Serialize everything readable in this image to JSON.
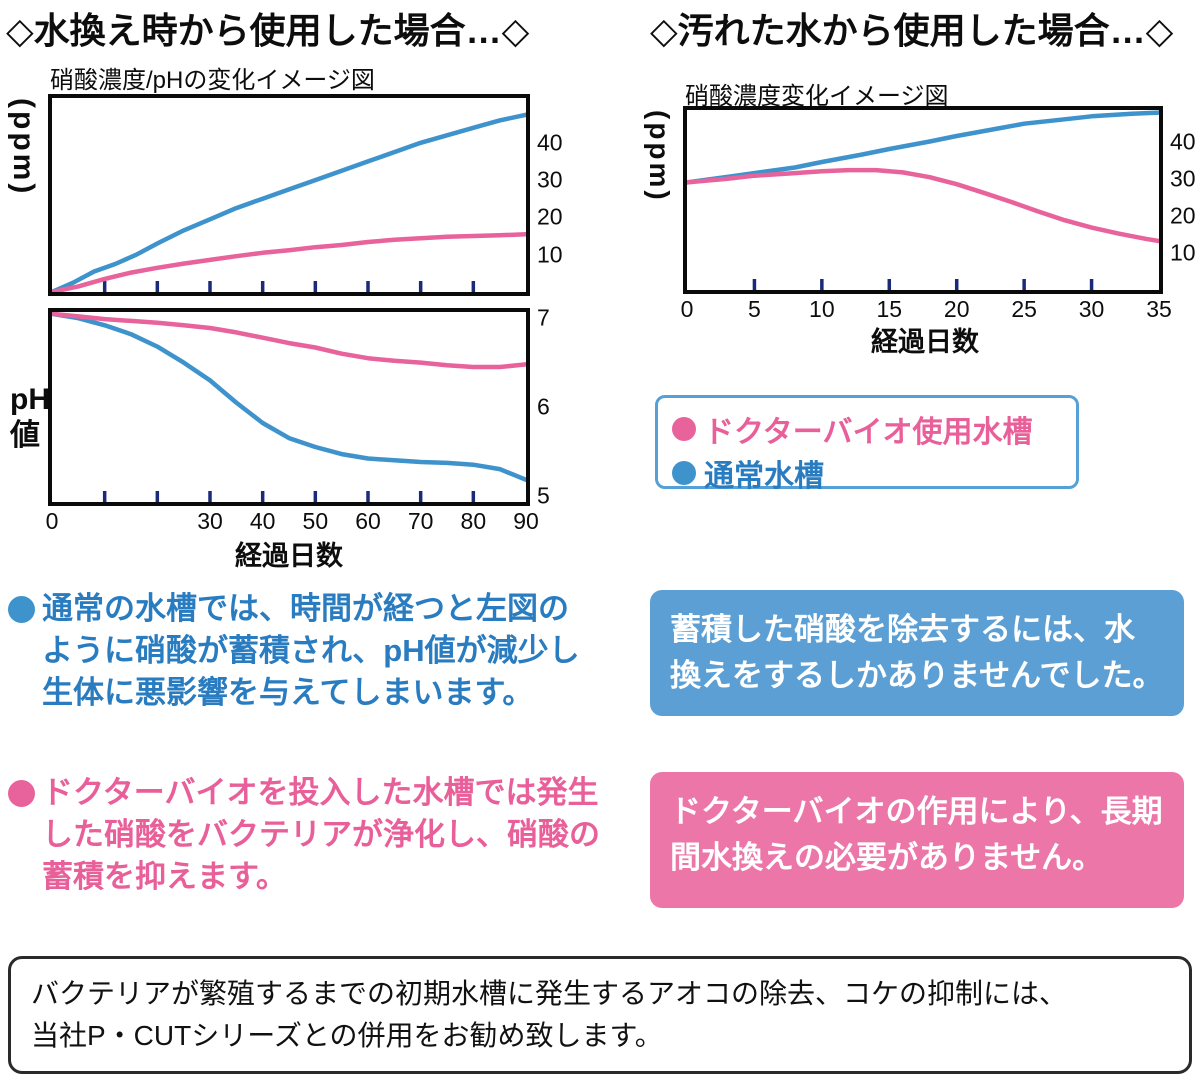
{
  "header": {
    "left_title": "◇水換え時から使用した場合…◇",
    "right_title": "◇汚れた水から使用した場合…◇"
  },
  "colors": {
    "pink": "#e8639b",
    "blue": "#3e93cc",
    "tick_navy": "#1b2a78",
    "chart_border": "#0a0a0a",
    "box_blue_bg": "#5b9fd4",
    "box_pink_bg": "#ec76a8",
    "text_blue": "#2a7cc0",
    "text_pink": "#e85f99",
    "legend_border": "#55a0d6"
  },
  "chart_data": [
    {
      "type": "line",
      "title": "硝酸濃度/pHの変化イメージ図",
      "ylabel": "硝酸濃度(ppm)",
      "xlabel": "",
      "xlim": [
        0,
        90
      ],
      "ylim": [
        0,
        52
      ],
      "xticks": [
        {
          "v": 10
        },
        {
          "v": 20
        },
        {
          "v": 30
        },
        {
          "v": 40
        },
        {
          "v": 50
        },
        {
          "v": 60
        },
        {
          "v": 70
        },
        {
          "v": 80
        }
      ],
      "yticks": [
        {
          "v": 40,
          "label": "40"
        },
        {
          "v": 30,
          "label": "30"
        },
        {
          "v": 20,
          "label": "20"
        },
        {
          "v": 10,
          "label": "10"
        }
      ],
      "series": [
        {
          "name": "通常水槽",
          "color": "blue",
          "points": [
            [
              0,
              0
            ],
            [
              4,
              2.5
            ],
            [
              8,
              5.5
            ],
            [
              12,
              7.5
            ],
            [
              16,
              10
            ],
            [
              20,
              13
            ],
            [
              25,
              16.5
            ],
            [
              30,
              19.5
            ],
            [
              35,
              22.5
            ],
            [
              40,
              25
            ],
            [
              45,
              27.5
            ],
            [
              50,
              30
            ],
            [
              55,
              32.5
            ],
            [
              60,
              35
            ],
            [
              65,
              37.5
            ],
            [
              70,
              40
            ],
            [
              75,
              42
            ],
            [
              80,
              44
            ],
            [
              85,
              46
            ],
            [
              90,
              47.5
            ]
          ]
        },
        {
          "name": "ドクターバイオ使用水槽",
          "color": "pink",
          "points": [
            [
              0,
              0
            ],
            [
              5,
              1.5
            ],
            [
              10,
              3.5
            ],
            [
              15,
              5.2
            ],
            [
              20,
              6.5
            ],
            [
              25,
              7.6
            ],
            [
              30,
              8.6
            ],
            [
              35,
              9.6
            ],
            [
              40,
              10.5
            ],
            [
              45,
              11.2
            ],
            [
              50,
              12
            ],
            [
              55,
              12.6
            ],
            [
              60,
              13.4
            ],
            [
              65,
              14
            ],
            [
              70,
              14.4
            ],
            [
              75,
              14.8
            ],
            [
              80,
              15
            ],
            [
              85,
              15.2
            ],
            [
              90,
              15.5
            ]
          ]
        }
      ]
    },
    {
      "type": "line",
      "title": "",
      "ylabel": "pH値",
      "ylabel_lines": [
        "pH",
        "値"
      ],
      "xlabel": "経過日数",
      "xlim": [
        0,
        90
      ],
      "ylim": [
        4.93,
        7.07
      ],
      "xticks": [
        {
          "v": 0,
          "label": "0",
          "tick": false
        },
        {
          "v": 10
        },
        {
          "v": 20
        },
        {
          "v": 30,
          "label": "30"
        },
        {
          "v": 40,
          "label": "40"
        },
        {
          "v": 50,
          "label": "50"
        },
        {
          "v": 60,
          "label": "60"
        },
        {
          "v": 70,
          "label": "70"
        },
        {
          "v": 80,
          "label": "80"
        },
        {
          "v": 90,
          "label": "90",
          "tick": false
        }
      ],
      "yticks": [
        {
          "v": 7,
          "label": "7"
        },
        {
          "v": 6,
          "label": "6"
        },
        {
          "v": 5,
          "label": "5"
        }
      ],
      "series": [
        {
          "name": "通常水槽",
          "color": "blue",
          "points": [
            [
              0,
              7.05
            ],
            [
              5,
              7.0
            ],
            [
              10,
              6.92
            ],
            [
              15,
              6.82
            ],
            [
              20,
              6.68
            ],
            [
              25,
              6.5
            ],
            [
              30,
              6.3
            ],
            [
              35,
              6.05
            ],
            [
              40,
              5.82
            ],
            [
              45,
              5.65
            ],
            [
              50,
              5.55
            ],
            [
              55,
              5.47
            ],
            [
              60,
              5.42
            ],
            [
              65,
              5.4
            ],
            [
              70,
              5.38
            ],
            [
              75,
              5.37
            ],
            [
              80,
              5.35
            ],
            [
              85,
              5.3
            ],
            [
              90,
              5.18
            ]
          ]
        },
        {
          "name": "ドクターバイオ使用水槽",
          "color": "pink",
          "points": [
            [
              0,
              7.05
            ],
            [
              5,
              7.02
            ],
            [
              10,
              6.99
            ],
            [
              15,
              6.97
            ],
            [
              20,
              6.95
            ],
            [
              25,
              6.92
            ],
            [
              30,
              6.89
            ],
            [
              35,
              6.84
            ],
            [
              40,
              6.78
            ],
            [
              45,
              6.72
            ],
            [
              50,
              6.67
            ],
            [
              55,
              6.6
            ],
            [
              60,
              6.55
            ],
            [
              65,
              6.52
            ],
            [
              70,
              6.5
            ],
            [
              75,
              6.47
            ],
            [
              80,
              6.45
            ],
            [
              85,
              6.45
            ],
            [
              90,
              6.48
            ]
          ]
        }
      ]
    },
    {
      "type": "line",
      "title": "硝酸濃度変化イメージ図",
      "ylabel": "硝酸濃度(ppm)",
      "xlabel": "経過日数",
      "xlim": [
        0,
        35
      ],
      "ylim": [
        0,
        48.5
      ],
      "xticks": [
        {
          "v": 0,
          "label": "0",
          "tick": false
        },
        {
          "v": 5,
          "label": "5"
        },
        {
          "v": 10,
          "label": "10"
        },
        {
          "v": 15,
          "label": "15"
        },
        {
          "v": 20,
          "label": "20"
        },
        {
          "v": 25,
          "label": "25"
        },
        {
          "v": 30,
          "label": "30"
        },
        {
          "v": 35,
          "label": "35",
          "tick": false
        }
      ],
      "yticks": [
        {
          "v": 40,
          "label": "40"
        },
        {
          "v": 30,
          "label": "30"
        },
        {
          "v": 20,
          "label": "20"
        },
        {
          "v": 10,
          "label": "10"
        }
      ],
      "series": [
        {
          "name": "通常水槽",
          "color": "blue",
          "points": [
            [
              0,
              29
            ],
            [
              3,
              30.5
            ],
            [
              5,
              31.5
            ],
            [
              8,
              33
            ],
            [
              10,
              34.5
            ],
            [
              13,
              36.5
            ],
            [
              15,
              38
            ],
            [
              18,
              40
            ],
            [
              20,
              41.5
            ],
            [
              23,
              43.5
            ],
            [
              25,
              44.8
            ],
            [
              28,
              46
            ],
            [
              30,
              46.8
            ],
            [
              33,
              47.5
            ],
            [
              35,
              47.8
            ]
          ]
        },
        {
          "name": "ドクターバイオ使用水槽",
          "color": "pink",
          "points": [
            [
              0,
              29
            ],
            [
              3,
              30
            ],
            [
              5,
              30.8
            ],
            [
              8,
              31.5
            ],
            [
              10,
              32
            ],
            [
              12,
              32.3
            ],
            [
              14,
              32.3
            ],
            [
              16,
              31.7
            ],
            [
              18,
              30.4
            ],
            [
              20,
              28.5
            ],
            [
              22,
              26.2
            ],
            [
              24,
              23.8
            ],
            [
              26,
              21.2
            ],
            [
              28,
              18.8
            ],
            [
              30,
              16.8
            ],
            [
              32,
              15.2
            ],
            [
              34,
              13.8
            ],
            [
              35,
              13.2
            ]
          ]
        }
      ]
    }
  ],
  "legend": {
    "items": [
      {
        "label": "ドクターバイオ使用水槽",
        "color": "pink"
      },
      {
        "label": "通常水槽",
        "color": "blue"
      }
    ]
  },
  "notes_left": [
    {
      "color": "blue",
      "text": "通常の水槽では、時間が経つと左図の\nように硝酸が蓄積され、pH値が減少し\n生体に悪影響を与えてしまいます。"
    },
    {
      "color": "pink",
      "text": "ドクターバイオを投入した水槽では発生\nした硝酸をバクテリアが浄化し、硝酸の\n蓄積を抑えます。"
    }
  ],
  "notes_right": [
    {
      "color": "blue",
      "text": "蓄積した硝酸を除去するには、水\n換えをするしかありませんでした。"
    },
    {
      "color": "pink",
      "text": "ドクターバイオの作用により、長期\n間水換えの必要がありません。"
    }
  ],
  "footer": {
    "text": "バクテリアが繁殖するまでの初期水槽に発生するアオコの除去、コケの抑制には、\n当社P・CUTシリーズとの併用をお勧め致します。"
  }
}
